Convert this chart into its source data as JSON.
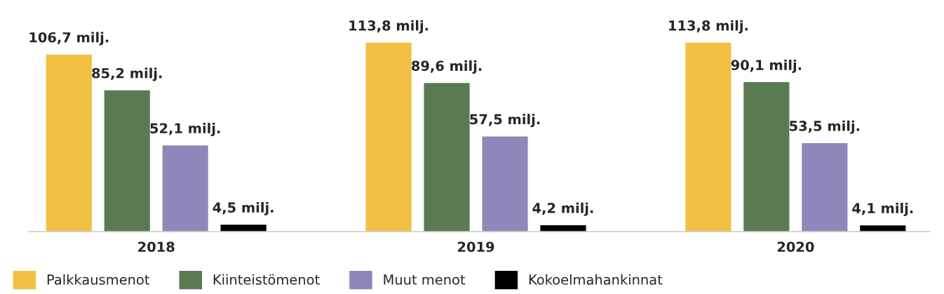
{
  "chart_data": {
    "type": "bar",
    "categories": [
      "2018",
      "2019",
      "2020"
    ],
    "series": [
      {
        "name": "Palkkausmenot",
        "color": "#f2c144",
        "values": [
          106.7,
          113.8,
          113.8
        ],
        "value_labels": [
          "106,7 milj.",
          "113,8 milj.",
          "113,8 milj."
        ]
      },
      {
        "name": "Kiinteistömenot",
        "color": "#5a7b52",
        "values": [
          85.2,
          89.6,
          90.1
        ],
        "value_labels": [
          "85,2 milj.",
          "89,6 milj.",
          "90,1 milj."
        ]
      },
      {
        "name": "Muut menot",
        "color": "#8f87b9",
        "values": [
          52.1,
          57.5,
          53.5
        ],
        "value_labels": [
          "52,1 milj.",
          "57,5 milj.",
          "53,5 milj."
        ]
      },
      {
        "name": "Kokoelmahankinnat",
        "color": "#000000",
        "values": [
          4.5,
          4.2,
          4.1
        ],
        "value_labels": [
          "4,5 milj.",
          "4,2 milj.",
          "4,1 milj."
        ]
      }
    ],
    "tick_labels": "x",
    "grid": false,
    "legend": "bottom"
  }
}
